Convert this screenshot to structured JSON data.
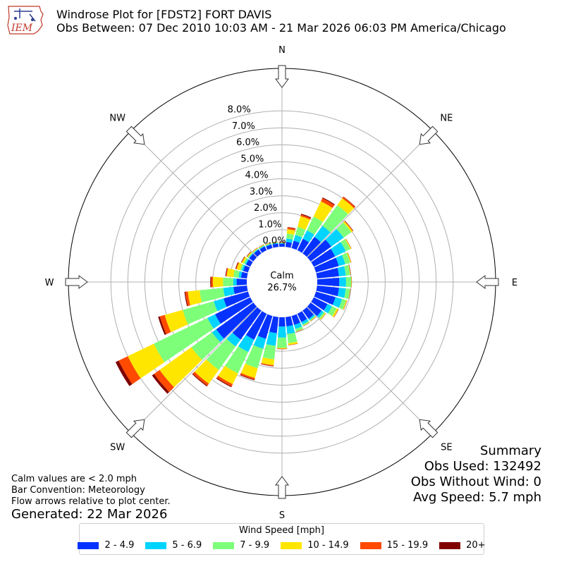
{
  "header": {
    "logo_text": "IEM",
    "title": "Windrose Plot for [FDST2] FORT DAVIS",
    "subtitle": "Obs Between: 07 Dec 2010 10:03 AM - 21 Mar 2026 06:03 PM America/Chicago"
  },
  "chart_data": {
    "type": "windrose",
    "units": "%",
    "radial_ticks": [
      "0.0%",
      "1.0%",
      "2.0%",
      "3.0%",
      "4.0%",
      "5.0%",
      "6.0%",
      "7.0%",
      "8.0%"
    ],
    "radial_max": 10.5,
    "compass_labels": [
      {
        "label": "N",
        "deg": 0
      },
      {
        "label": "NE",
        "deg": 45
      },
      {
        "label": "E",
        "deg": 90
      },
      {
        "label": "SE",
        "deg": 135
      },
      {
        "label": "S",
        "deg": 180
      },
      {
        "label": "SW",
        "deg": 225
      },
      {
        "label": "W",
        "deg": 270
      },
      {
        "label": "NW",
        "deg": 315
      }
    ],
    "calm_label": "Calm",
    "calm_percent": "26.7%",
    "bins": [
      {
        "label": "2 - 4.9",
        "color": "#0532ff"
      },
      {
        "label": "5 - 6.9",
        "color": "#00d4ff"
      },
      {
        "label": "7 - 9.9",
        "color": "#7dff7a"
      },
      {
        "label": "10 - 14.9",
        "color": "#ffe600"
      },
      {
        "label": "15 - 19.9",
        "color": "#ff4a00"
      },
      {
        "label": "20+",
        "color": "#800000"
      }
    ],
    "directions_deg": [
      0,
      10,
      20,
      30,
      40,
      50,
      60,
      70,
      80,
      90,
      100,
      110,
      120,
      130,
      140,
      150,
      160,
      170,
      180,
      190,
      200,
      210,
      220,
      230,
      240,
      250,
      260,
      270,
      280,
      290,
      300,
      310,
      320,
      330,
      340,
      350
    ],
    "cumulative": [
      [
        0.18,
        0.22,
        0.24,
        0.26,
        0.28,
        0.3
      ],
      [
        0.3,
        0.5,
        0.8,
        1.05,
        1.15,
        1.18
      ],
      [
        0.45,
        0.8,
        1.3,
        1.95,
        2.05,
        2.1
      ],
      [
        0.75,
        1.3,
        2.2,
        3.2,
        3.4,
        3.45
      ],
      [
        1.2,
        2.0,
        3.5,
        4.0,
        4.1,
        4.12
      ],
      [
        1.5,
        2.4,
        2.95,
        3.05,
        3.08,
        3.1
      ],
      [
        1.4,
        2.1,
        2.4,
        2.45,
        2.46,
        2.47
      ],
      [
        1.4,
        1.8,
        2.1,
        2.15,
        2.16,
        2.17
      ],
      [
        1.3,
        1.7,
        1.95,
        1.98,
        1.99,
        2.0
      ],
      [
        1.3,
        1.7,
        2.0,
        2.02,
        2.03,
        2.04
      ],
      [
        1.3,
        1.7,
        1.95,
        1.97,
        1.98,
        1.99
      ],
      [
        1.2,
        1.6,
        1.85,
        1.9,
        1.91,
        1.92
      ],
      [
        0.9,
        1.2,
        1.5,
        1.6,
        1.62,
        1.63
      ],
      [
        0.8,
        0.95,
        1.05,
        1.1,
        1.11,
        1.12
      ],
      [
        0.6,
        0.7,
        0.75,
        0.78,
        0.79,
        0.8
      ],
      [
        0.55,
        0.7,
        0.78,
        0.8,
        0.81,
        0.82
      ],
      [
        0.55,
        0.8,
        0.95,
        0.97,
        0.98,
        0.99
      ],
      [
        0.55,
        1.0,
        1.55,
        1.65,
        1.67,
        1.68
      ],
      [
        0.55,
        1.2,
        1.8,
        1.85,
        1.87,
        1.88
      ],
      [
        0.95,
        1.7,
        2.5,
        2.85,
        2.9,
        2.92
      ],
      [
        1.4,
        2.0,
        3.2,
        3.8,
        3.9,
        3.94
      ],
      [
        1.7,
        2.5,
        3.9,
        4.6,
        4.75,
        4.8
      ],
      [
        2.1,
        2.6,
        4.3,
        5.3,
        5.45,
        5.5
      ],
      [
        2.7,
        3.0,
        4.5,
        6.8,
        7.2,
        7.35
      ],
      [
        2.3,
        2.8,
        6.3,
        8.0,
        8.6,
        8.8
      ],
      [
        1.5,
        2.1,
        4.0,
        5.1,
        5.4,
        5.5
      ],
      [
        0.8,
        1.4,
        2.8,
        3.5,
        3.65,
        3.7
      ],
      [
        0.6,
        0.8,
        1.4,
        2.0,
        2.1,
        2.15
      ],
      [
        0.35,
        0.5,
        0.8,
        1.2,
        1.25,
        1.28
      ],
      [
        0.3,
        0.4,
        0.5,
        0.7,
        0.75,
        0.78
      ],
      [
        0.28,
        0.35,
        0.45,
        0.55,
        0.58,
        0.6
      ],
      [
        0.3,
        0.35,
        0.4,
        0.46,
        0.48,
        0.5
      ],
      [
        0.28,
        0.32,
        0.36,
        0.4,
        0.41,
        0.42
      ],
      [
        0.25,
        0.3,
        0.34,
        0.37,
        0.38,
        0.39
      ],
      [
        0.22,
        0.26,
        0.3,
        0.33,
        0.34,
        0.35
      ],
      [
        0.2,
        0.24,
        0.28,
        0.3,
        0.31,
        0.32
      ]
    ]
  },
  "notes": {
    "line1": "Calm values are < 2.0 mph",
    "line2": "Bar Convention: Meteorology",
    "line3": "Flow arrows relative to plot center.",
    "generated": "Generated: 22 Mar 2026"
  },
  "summary": {
    "title": "Summary",
    "obs_used": "Obs Used: 132492",
    "obs_without_wind": "Obs Without Wind: 0",
    "avg_speed": "Avg Speed: 5.7 mph"
  },
  "legend": {
    "title": "Wind Speed [mph]"
  }
}
